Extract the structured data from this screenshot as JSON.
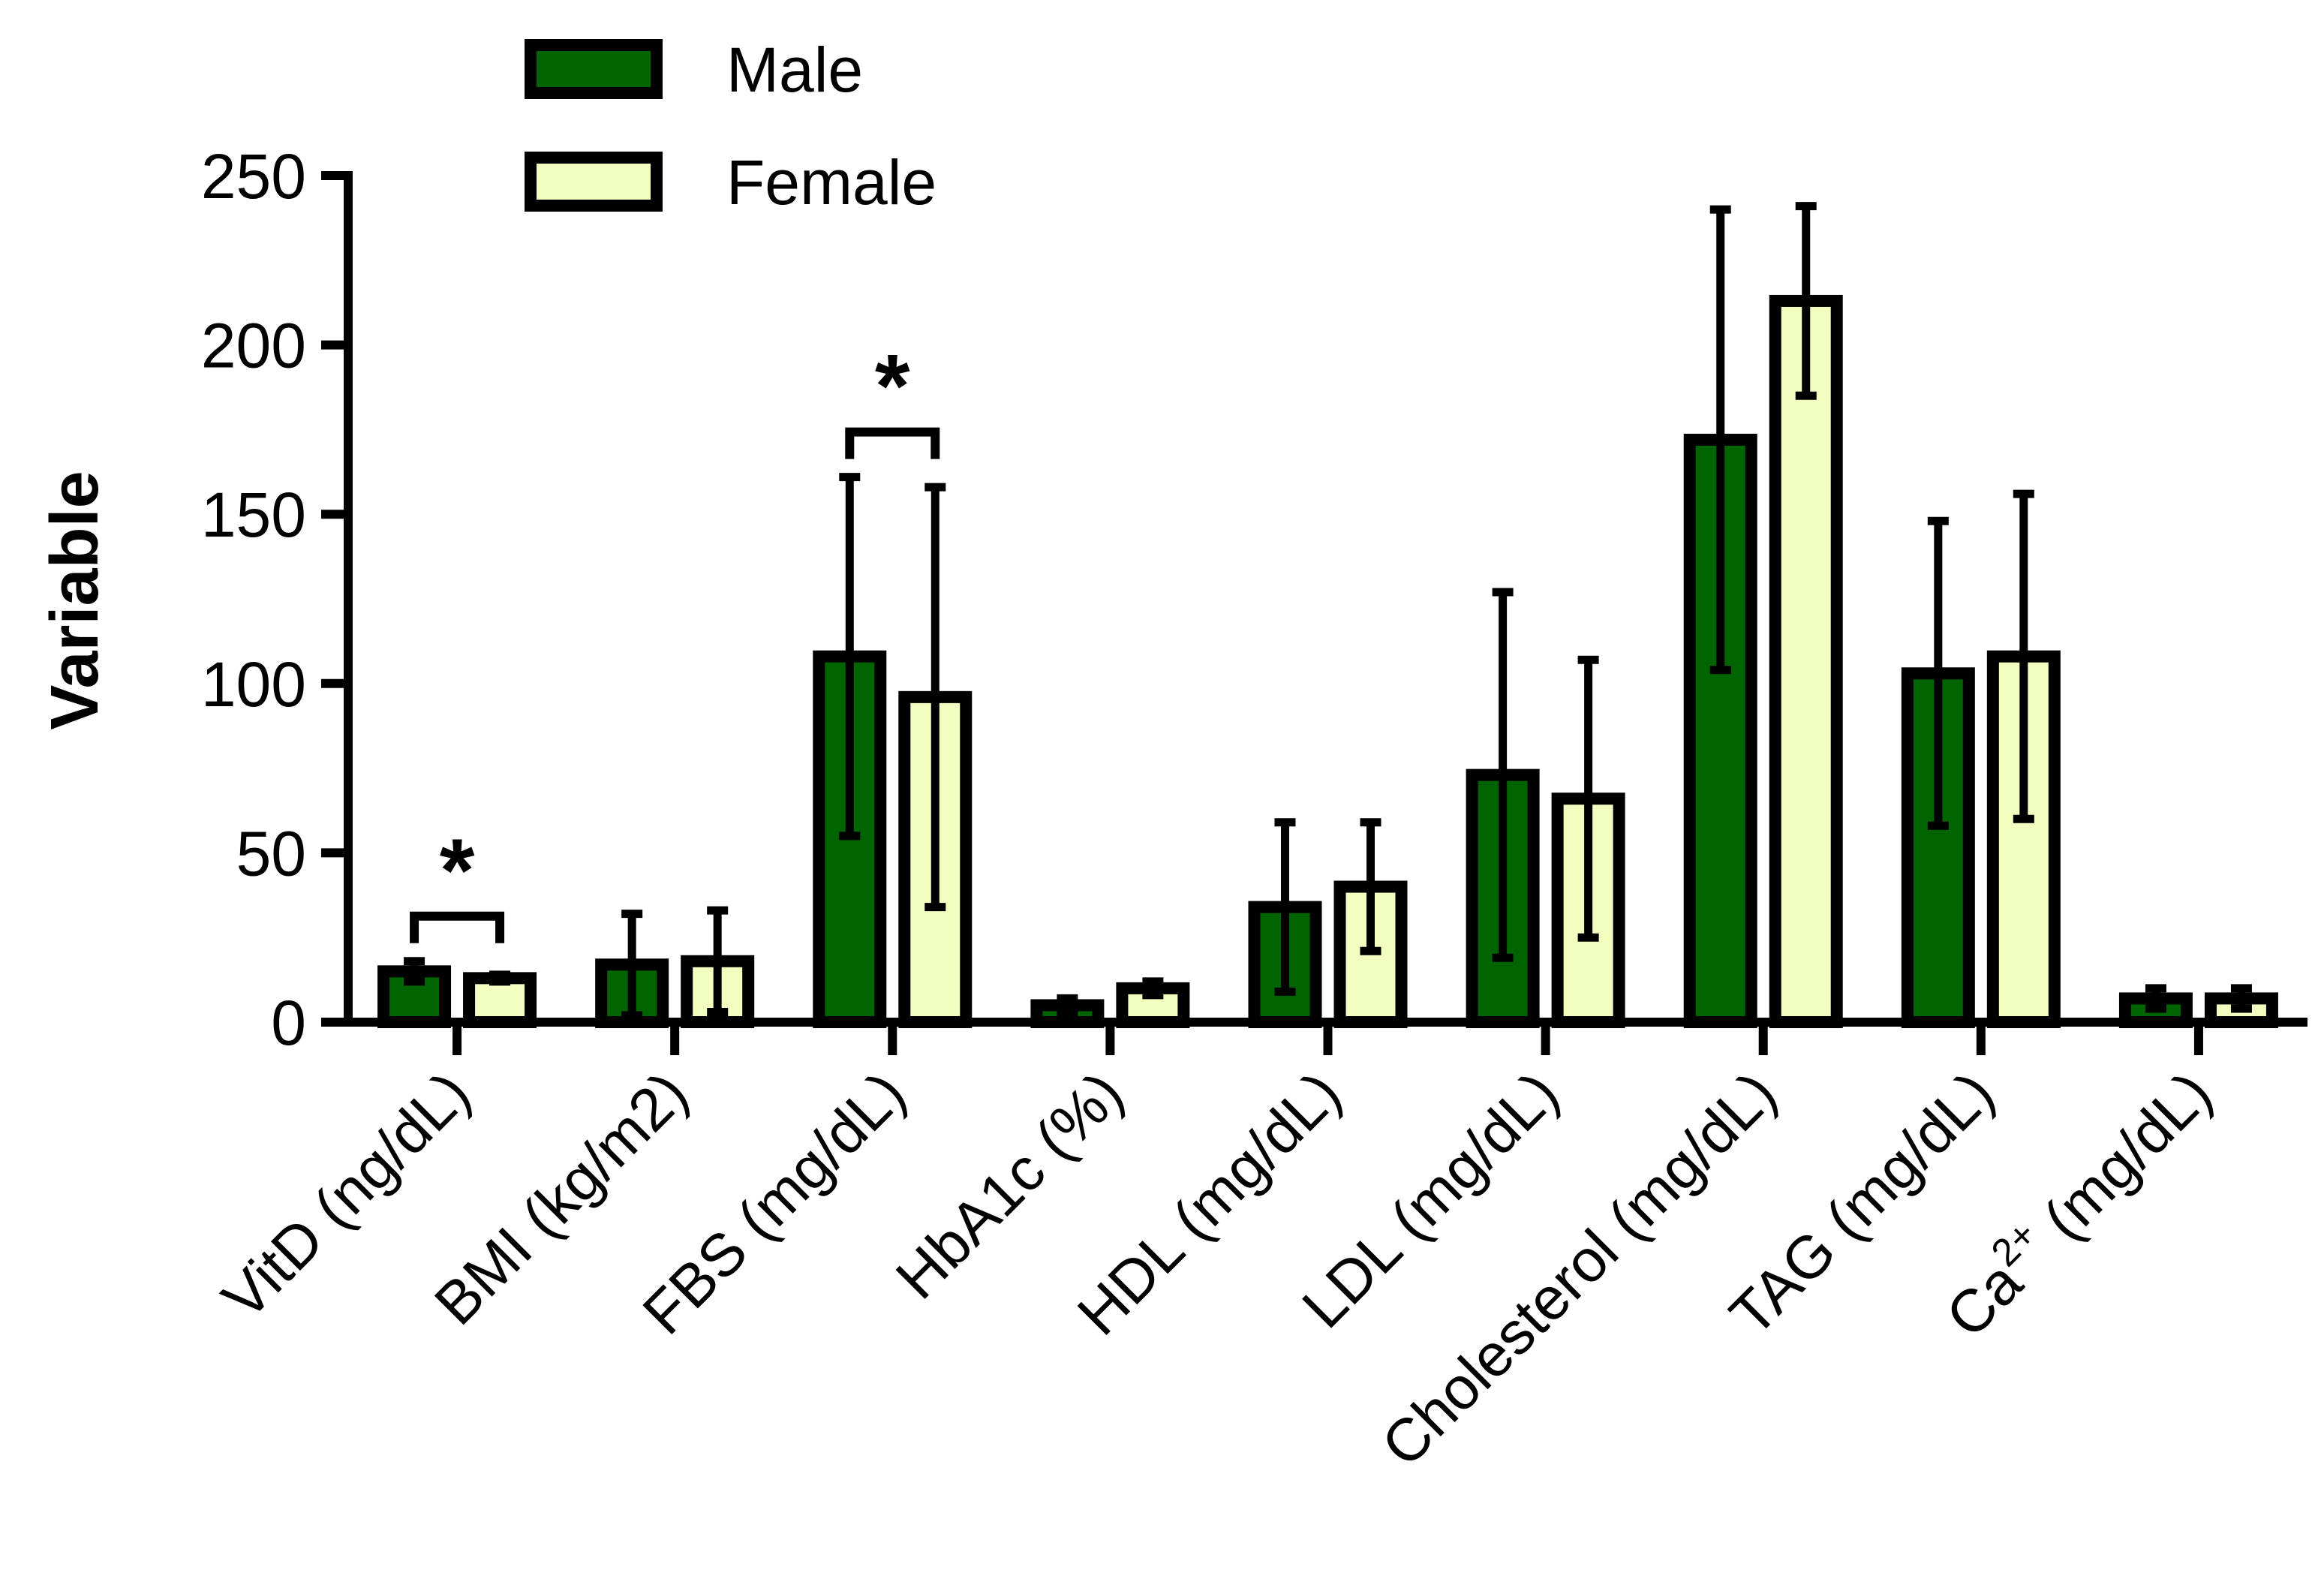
{
  "chart_data": {
    "type": "bar",
    "title": "",
    "xlabel": "",
    "ylabel": "Variable",
    "ylim": [
      0,
      250
    ],
    "yticks": [
      0,
      50,
      100,
      150,
      200,
      250
    ],
    "grid": false,
    "legend_position": "top-left",
    "categories": [
      "VitD (ng/dL)",
      "BMI (kg/m2)",
      "FBS (mg/dL)",
      "HbA1c (%)",
      "HDL (mg/dL)",
      "LDL (mg/dL)",
      "Cholesterol (mg/dL)",
      "TAG (mg/dL)",
      "Ca2+ (mg/dL)"
    ],
    "ca_label": {
      "base": "Ca",
      "superscript": "2+",
      "unit": " (mg/dL)"
    },
    "series": [
      {
        "name": "Male",
        "color": "#006400",
        "values": [
          15,
          17,
          108,
          5,
          34,
          73,
          172,
          103,
          7
        ],
        "errors": [
          3,
          15,
          53,
          2,
          25,
          54,
          68,
          45,
          3
        ]
      },
      {
        "name": "Female",
        "color": "#F2FDC0",
        "values": [
          13,
          18,
          96,
          10,
          40,
          66,
          213,
          108,
          7
        ],
        "errors": [
          1,
          15,
          62,
          2,
          19,
          41,
          28,
          48,
          3
        ]
      }
    ],
    "annotations": [
      {
        "type": "significance",
        "label": "*",
        "category_index": 0
      },
      {
        "type": "significance",
        "label": "*",
        "category_index": 2
      }
    ]
  }
}
